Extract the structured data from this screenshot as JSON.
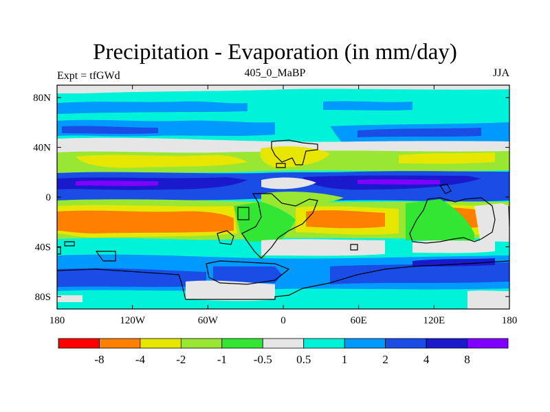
{
  "title": "Precipitation - Evaporation (in mm/day)",
  "left_string": "Expt = tfGWd",
  "center_string": "405_0_MaBP",
  "right_string": "JJA",
  "axes": {
    "lon_ticks": [
      {
        "value": -180,
        "label": "180"
      },
      {
        "value": -120,
        "label": "120W"
      },
      {
        "value": -60,
        "label": "60W"
      },
      {
        "value": 0,
        "label": "0"
      },
      {
        "value": 60,
        "label": "60E"
      },
      {
        "value": 120,
        "label": "120E"
      },
      {
        "value": 180,
        "label": "180"
      }
    ],
    "lat_ticks": [
      {
        "value": 80,
        "label": "80N"
      },
      {
        "value": 40,
        "label": "40N"
      },
      {
        "value": 0,
        "label": "0"
      },
      {
        "value": -40,
        "label": "40S"
      },
      {
        "value": -80,
        "label": "80S"
      }
    ],
    "lon_range": [
      -180,
      180
    ],
    "lat_range": [
      -90,
      90
    ]
  },
  "colorbar": {
    "colors": [
      "#ff0000",
      "#ff7f00",
      "#e6e600",
      "#99e633",
      "#33e633",
      "#e6e6e6",
      "#00f2d9",
      "#0099ff",
      "#1a4de6",
      "#1a1acc",
      "#7f00ff"
    ],
    "labels": [
      "-8",
      "-4",
      "-2",
      "-1",
      "-0.5",
      "0.5",
      "1",
      "2",
      "4",
      "8"
    ]
  }
}
